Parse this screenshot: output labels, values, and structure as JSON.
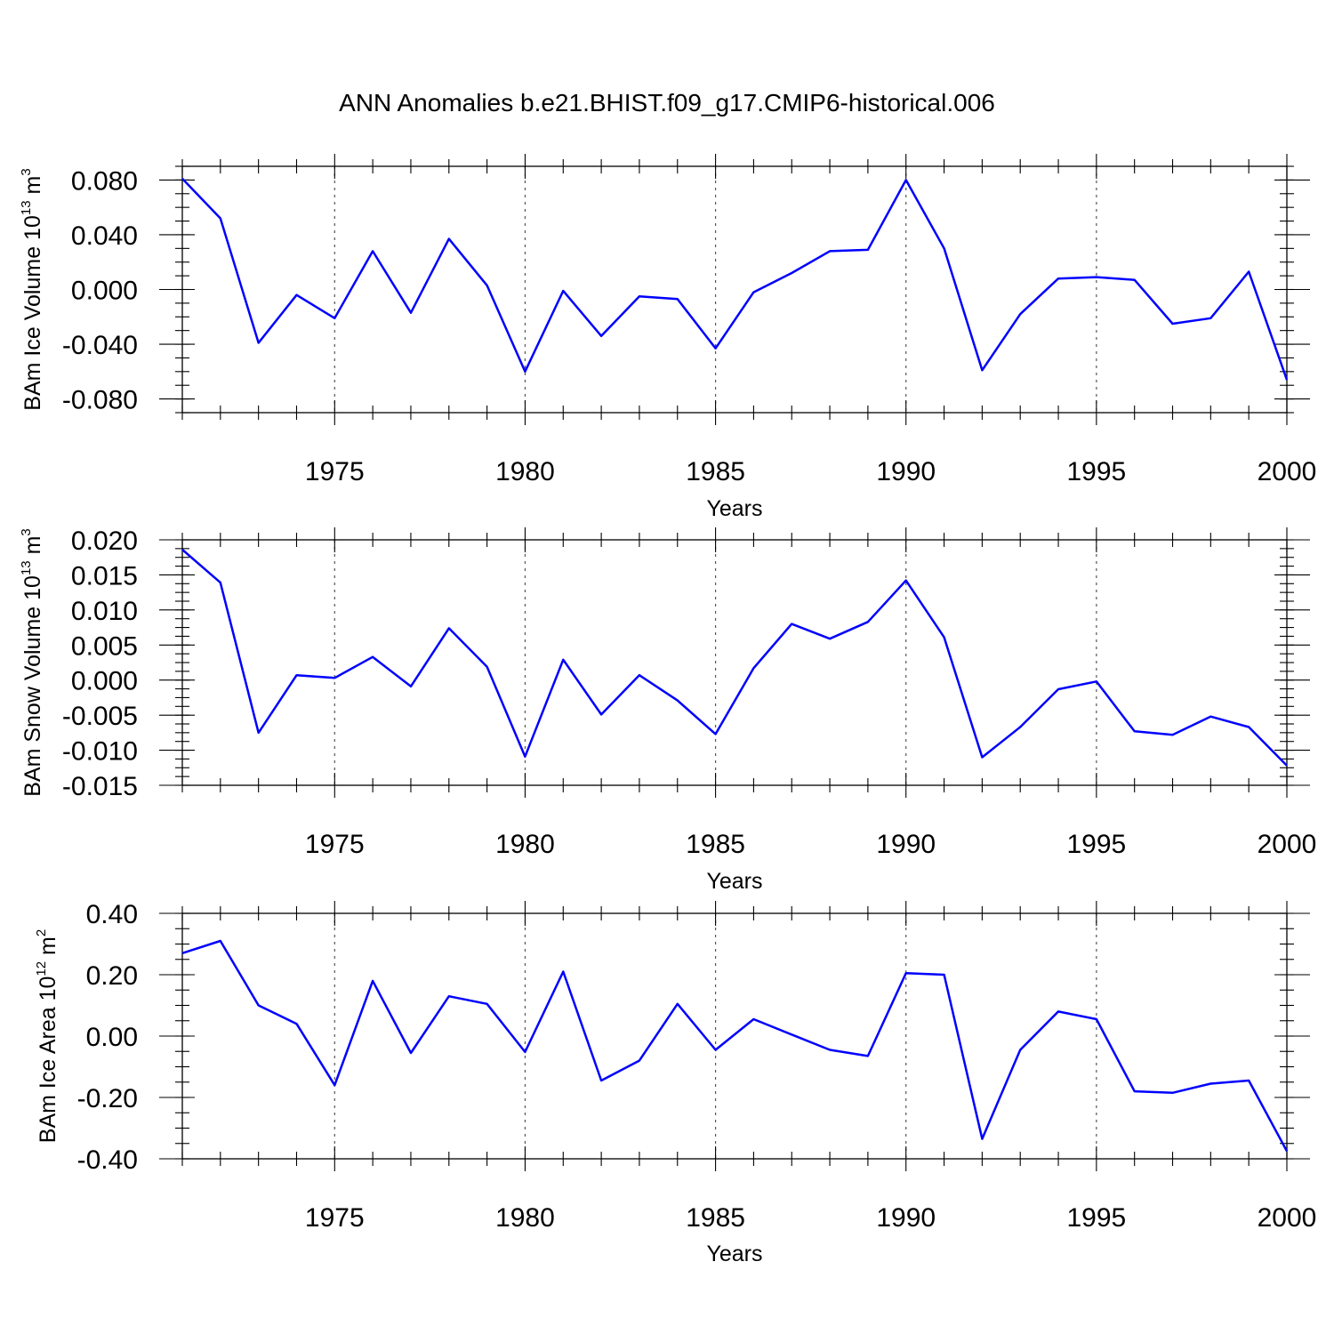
{
  "figure": {
    "title": "ANN Anomalies b.e21.BHIST.f09_g17.CMIP6-historical.006",
    "line_color": "#0000ff"
  },
  "chart_data": [
    {
      "type": "line",
      "xlabel": "Years",
      "ylabel": {
        "prefix": "BAm Ice Volume 10",
        "exp1": "13",
        "mid": " m",
        "exp2": "3"
      },
      "xlim": [
        1971,
        2000
      ],
      "ylim": [
        -0.09,
        0.09
      ],
      "xticks": [
        1975,
        1980,
        1985,
        1990,
        1995,
        2000
      ],
      "yticks": [
        -0.08,
        -0.04,
        0.0,
        0.04,
        0.08
      ],
      "ytick_labels": [
        "-0.080",
        "-0.040",
        "0.000",
        "0.040",
        "0.080"
      ],
      "x": [
        1971,
        1972,
        1973,
        1974,
        1975,
        1976,
        1977,
        1978,
        1979,
        1980,
        1981,
        1982,
        1983,
        1984,
        1985,
        1986,
        1987,
        1988,
        1989,
        1990,
        1991,
        1992,
        1993,
        1994,
        1995,
        1996,
        1997,
        1998,
        1999,
        2000
      ],
      "series": [
        {
          "values": [
            0.081,
            0.052,
            -0.039,
            -0.004,
            -0.021,
            0.028,
            -0.017,
            0.037,
            0.003,
            -0.06,
            -0.001,
            -0.034,
            -0.005,
            -0.007,
            -0.043,
            -0.002,
            0.012,
            0.028,
            0.029,
            0.08,
            0.03,
            -0.059,
            -0.018,
            0.008,
            0.009,
            0.007,
            -0.025,
            -0.021,
            0.013,
            -0.066
          ]
        }
      ]
    },
    {
      "type": "line",
      "xlabel": "Years",
      "ylabel": {
        "prefix": "BAm Snow Volume 10",
        "exp1": "13",
        "mid": " m",
        "exp2": "3"
      },
      "xlim": [
        1971,
        2000
      ],
      "ylim": [
        -0.015,
        0.02
      ],
      "xticks": [
        1975,
        1980,
        1985,
        1990,
        1995,
        2000
      ],
      "yticks": [
        -0.015,
        -0.01,
        -0.005,
        0.0,
        0.005,
        0.01,
        0.015,
        0.02
      ],
      "ytick_labels": [
        "-0.015",
        "-0.010",
        "-0.005",
        "0.000",
        "0.005",
        "0.010",
        "0.015",
        "0.020"
      ],
      "x": [
        1971,
        1972,
        1973,
        1974,
        1975,
        1976,
        1977,
        1978,
        1979,
        1980,
        1981,
        1982,
        1983,
        1984,
        1985,
        1986,
        1987,
        1988,
        1989,
        1990,
        1991,
        1992,
        1993,
        1994,
        1995,
        1996,
        1997,
        1998,
        1999,
        2000
      ],
      "series": [
        {
          "values": [
            0.0186,
            0.0139,
            -0.0075,
            0.0007,
            0.0003,
            0.0033,
            -0.0009,
            0.0074,
            0.0019,
            -0.0109,
            0.0029,
            -0.0049,
            0.0007,
            -0.0029,
            -0.0077,
            0.0017,
            0.008,
            0.0059,
            0.0083,
            0.0142,
            0.0061,
            -0.011,
            -0.0067,
            -0.0013,
            -0.0002,
            -0.0073,
            -0.0078,
            -0.0052,
            -0.0067,
            -0.0122
          ]
        }
      ]
    },
    {
      "type": "line",
      "xlabel": "Years",
      "ylabel": {
        "prefix": "BAm Ice Area 10",
        "exp1": "12",
        "mid": " m",
        "exp2": "2"
      },
      "xlim": [
        1971,
        2000
      ],
      "ylim": [
        -0.4,
        0.4
      ],
      "xticks": [
        1975,
        1980,
        1985,
        1990,
        1995,
        2000
      ],
      "yticks": [
        -0.4,
        -0.2,
        0.0,
        0.2,
        0.4
      ],
      "ytick_labels": [
        "-0.40",
        "-0.20",
        "0.00",
        "0.20",
        "0.40"
      ],
      "x": [
        1971,
        1972,
        1973,
        1974,
        1975,
        1976,
        1977,
        1978,
        1979,
        1980,
        1981,
        1982,
        1983,
        1984,
        1985,
        1986,
        1987,
        1988,
        1989,
        1990,
        1991,
        1992,
        1993,
        1994,
        1995,
        1996,
        1997,
        1998,
        1999,
        2000
      ],
      "series": [
        {
          "values": [
            0.27,
            0.31,
            0.1,
            0.04,
            -0.16,
            0.18,
            -0.055,
            0.13,
            0.105,
            -0.052,
            0.21,
            -0.145,
            -0.08,
            0.105,
            -0.045,
            0.055,
            0.005,
            -0.045,
            -0.065,
            0.205,
            0.2,
            -0.335,
            -0.045,
            0.08,
            0.055,
            -0.18,
            -0.185,
            -0.155,
            -0.145,
            -0.375
          ]
        }
      ]
    }
  ]
}
